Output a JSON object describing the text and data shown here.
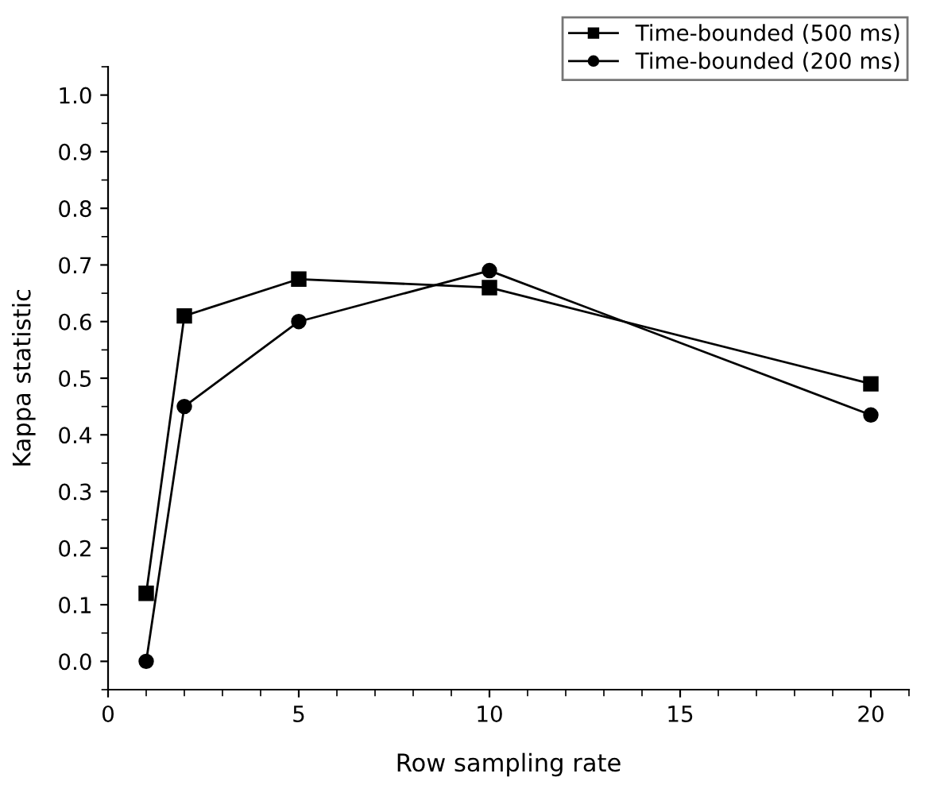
{
  "chart_data": {
    "type": "line",
    "xlabel": "Row sampling rate",
    "ylabel": "Kappa statistic",
    "x": [
      1,
      2,
      5,
      10,
      20
    ],
    "series": [
      {
        "name": "Time-bounded (500 ms)",
        "color": "#000000",
        "marker": "square",
        "values": [
          0.12,
          0.61,
          0.675,
          0.66,
          0.49
        ]
      },
      {
        "name": "Time-bounded (200 ms)",
        "color": "#000000",
        "marker": "circle",
        "values": [
          0.0,
          0.45,
          0.6,
          0.69,
          0.435
        ]
      }
    ],
    "xlim": [
      0,
      21
    ],
    "xticks": [
      0,
      5,
      10,
      15,
      20
    ],
    "ylim": [
      -0.05,
      1.05
    ],
    "yticks": [
      {
        "value": 0,
        "label": "0.0"
      },
      0.1,
      0.2,
      0.3,
      0.4,
      0.5,
      0.6,
      0.7,
      0.8,
      0.9,
      {
        "value": 1,
        "label": "1.0"
      }
    ],
    "grid": false,
    "legend": "top right",
    "line_style": "solid"
  }
}
